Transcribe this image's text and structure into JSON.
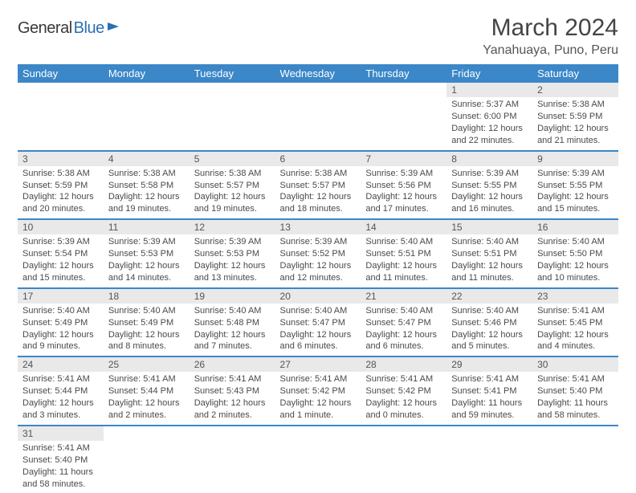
{
  "logo": {
    "text_dark": "General",
    "text_blue": "Blue"
  },
  "title": "March 2024",
  "location": "Yanahuaya, Puno, Peru",
  "colors": {
    "header_bg": "#3b87c8",
    "header_text": "#ffffff",
    "daynum_bg": "#e9e9e9",
    "row_border": "#3b87c8",
    "logo_blue": "#2a6fb5",
    "body_text": "#4a4a4a"
  },
  "typography": {
    "title_fontsize": 30,
    "location_fontsize": 16,
    "weekday_fontsize": 13,
    "cell_fontsize": 11
  },
  "weekdays": [
    "Sunday",
    "Monday",
    "Tuesday",
    "Wednesday",
    "Thursday",
    "Friday",
    "Saturday"
  ],
  "weeks": [
    [
      null,
      null,
      null,
      null,
      null,
      {
        "n": "1",
        "sunrise": "Sunrise: 5:37 AM",
        "sunset": "Sunset: 6:00 PM",
        "daylight": "Daylight: 12 hours and 22 minutes."
      },
      {
        "n": "2",
        "sunrise": "Sunrise: 5:38 AM",
        "sunset": "Sunset: 5:59 PM",
        "daylight": "Daylight: 12 hours and 21 minutes."
      }
    ],
    [
      {
        "n": "3",
        "sunrise": "Sunrise: 5:38 AM",
        "sunset": "Sunset: 5:59 PM",
        "daylight": "Daylight: 12 hours and 20 minutes."
      },
      {
        "n": "4",
        "sunrise": "Sunrise: 5:38 AM",
        "sunset": "Sunset: 5:58 PM",
        "daylight": "Daylight: 12 hours and 19 minutes."
      },
      {
        "n": "5",
        "sunrise": "Sunrise: 5:38 AM",
        "sunset": "Sunset: 5:57 PM",
        "daylight": "Daylight: 12 hours and 19 minutes."
      },
      {
        "n": "6",
        "sunrise": "Sunrise: 5:38 AM",
        "sunset": "Sunset: 5:57 PM",
        "daylight": "Daylight: 12 hours and 18 minutes."
      },
      {
        "n": "7",
        "sunrise": "Sunrise: 5:39 AM",
        "sunset": "Sunset: 5:56 PM",
        "daylight": "Daylight: 12 hours and 17 minutes."
      },
      {
        "n": "8",
        "sunrise": "Sunrise: 5:39 AM",
        "sunset": "Sunset: 5:55 PM",
        "daylight": "Daylight: 12 hours and 16 minutes."
      },
      {
        "n": "9",
        "sunrise": "Sunrise: 5:39 AM",
        "sunset": "Sunset: 5:55 PM",
        "daylight": "Daylight: 12 hours and 15 minutes."
      }
    ],
    [
      {
        "n": "10",
        "sunrise": "Sunrise: 5:39 AM",
        "sunset": "Sunset: 5:54 PM",
        "daylight": "Daylight: 12 hours and 15 minutes."
      },
      {
        "n": "11",
        "sunrise": "Sunrise: 5:39 AM",
        "sunset": "Sunset: 5:53 PM",
        "daylight": "Daylight: 12 hours and 14 minutes."
      },
      {
        "n": "12",
        "sunrise": "Sunrise: 5:39 AM",
        "sunset": "Sunset: 5:53 PM",
        "daylight": "Daylight: 12 hours and 13 minutes."
      },
      {
        "n": "13",
        "sunrise": "Sunrise: 5:39 AM",
        "sunset": "Sunset: 5:52 PM",
        "daylight": "Daylight: 12 hours and 12 minutes."
      },
      {
        "n": "14",
        "sunrise": "Sunrise: 5:40 AM",
        "sunset": "Sunset: 5:51 PM",
        "daylight": "Daylight: 12 hours and 11 minutes."
      },
      {
        "n": "15",
        "sunrise": "Sunrise: 5:40 AM",
        "sunset": "Sunset: 5:51 PM",
        "daylight": "Daylight: 12 hours and 11 minutes."
      },
      {
        "n": "16",
        "sunrise": "Sunrise: 5:40 AM",
        "sunset": "Sunset: 5:50 PM",
        "daylight": "Daylight: 12 hours and 10 minutes."
      }
    ],
    [
      {
        "n": "17",
        "sunrise": "Sunrise: 5:40 AM",
        "sunset": "Sunset: 5:49 PM",
        "daylight": "Daylight: 12 hours and 9 minutes."
      },
      {
        "n": "18",
        "sunrise": "Sunrise: 5:40 AM",
        "sunset": "Sunset: 5:49 PM",
        "daylight": "Daylight: 12 hours and 8 minutes."
      },
      {
        "n": "19",
        "sunrise": "Sunrise: 5:40 AM",
        "sunset": "Sunset: 5:48 PM",
        "daylight": "Daylight: 12 hours and 7 minutes."
      },
      {
        "n": "20",
        "sunrise": "Sunrise: 5:40 AM",
        "sunset": "Sunset: 5:47 PM",
        "daylight": "Daylight: 12 hours and 6 minutes."
      },
      {
        "n": "21",
        "sunrise": "Sunrise: 5:40 AM",
        "sunset": "Sunset: 5:47 PM",
        "daylight": "Daylight: 12 hours and 6 minutes."
      },
      {
        "n": "22",
        "sunrise": "Sunrise: 5:40 AM",
        "sunset": "Sunset: 5:46 PM",
        "daylight": "Daylight: 12 hours and 5 minutes."
      },
      {
        "n": "23",
        "sunrise": "Sunrise: 5:41 AM",
        "sunset": "Sunset: 5:45 PM",
        "daylight": "Daylight: 12 hours and 4 minutes."
      }
    ],
    [
      {
        "n": "24",
        "sunrise": "Sunrise: 5:41 AM",
        "sunset": "Sunset: 5:44 PM",
        "daylight": "Daylight: 12 hours and 3 minutes."
      },
      {
        "n": "25",
        "sunrise": "Sunrise: 5:41 AM",
        "sunset": "Sunset: 5:44 PM",
        "daylight": "Daylight: 12 hours and 2 minutes."
      },
      {
        "n": "26",
        "sunrise": "Sunrise: 5:41 AM",
        "sunset": "Sunset: 5:43 PM",
        "daylight": "Daylight: 12 hours and 2 minutes."
      },
      {
        "n": "27",
        "sunrise": "Sunrise: 5:41 AM",
        "sunset": "Sunset: 5:42 PM",
        "daylight": "Daylight: 12 hours and 1 minute."
      },
      {
        "n": "28",
        "sunrise": "Sunrise: 5:41 AM",
        "sunset": "Sunset: 5:42 PM",
        "daylight": "Daylight: 12 hours and 0 minutes."
      },
      {
        "n": "29",
        "sunrise": "Sunrise: 5:41 AM",
        "sunset": "Sunset: 5:41 PM",
        "daylight": "Daylight: 11 hours and 59 minutes."
      },
      {
        "n": "30",
        "sunrise": "Sunrise: 5:41 AM",
        "sunset": "Sunset: 5:40 PM",
        "daylight": "Daylight: 11 hours and 58 minutes."
      }
    ],
    [
      {
        "n": "31",
        "sunrise": "Sunrise: 5:41 AM",
        "sunset": "Sunset: 5:40 PM",
        "daylight": "Daylight: 11 hours and 58 minutes."
      },
      null,
      null,
      null,
      null,
      null,
      null
    ]
  ]
}
